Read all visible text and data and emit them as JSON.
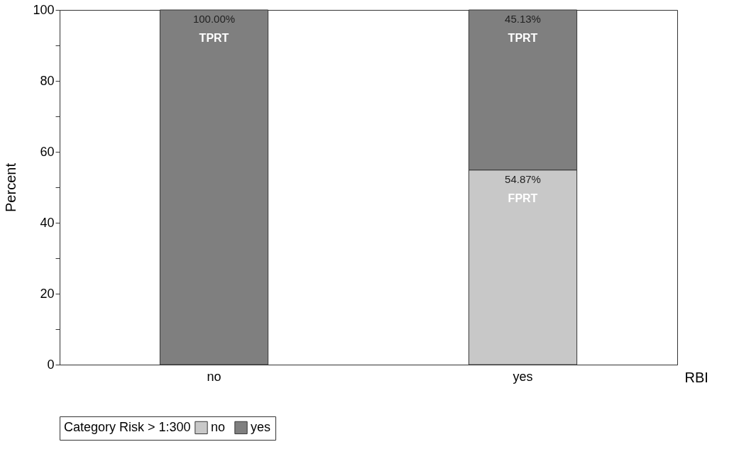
{
  "chart_data": {
    "type": "bar",
    "stacked": true,
    "categories": [
      "no",
      "yes"
    ],
    "series": [
      {
        "name": "no",
        "color": "#c8c8c8",
        "values": [
          null,
          54.87
        ],
        "value_labels": [
          null,
          "54.87%"
        ]
      },
      {
        "name": "yes",
        "color": "#7f7f7f",
        "values": [
          100,
          45.13
        ],
        "value_labels": [
          "100.00%",
          "45.13%"
        ]
      }
    ],
    "ylabel": "Percent",
    "xlabel": "RBI",
    "legend_title": "Category Risk > 1:300",
    "legend": "bottom",
    "ylim": [
      0,
      100
    ],
    "yticks": [
      0,
      {
        "value": 10,
        "label": null
      },
      20,
      {
        "value": 30,
        "label": null
      },
      40,
      {
        "value": 50,
        "label": null
      },
      60,
      {
        "value": 70,
        "label": null
      },
      80,
      {
        "value": 90,
        "label": null
      },
      100
    ],
    "grid": false,
    "annotations": [
      "FPRT",
      "TPRT",
      "TPRT"
    ]
  }
}
